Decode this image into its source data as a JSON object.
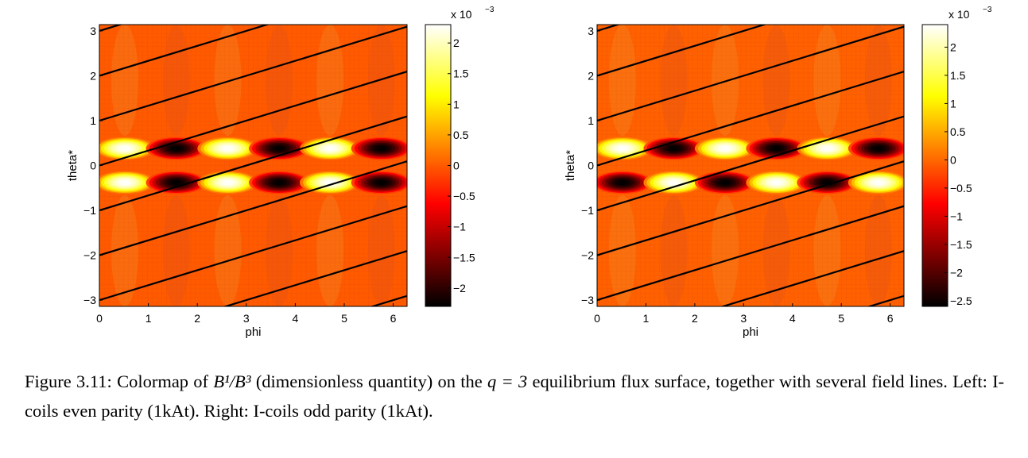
{
  "chart_data": [
    {
      "type": "heatmap",
      "title": "",
      "xlabel": "phi",
      "ylabel": "theta*",
      "xlim": [
        0,
        6.283
      ],
      "ylim": [
        -3.14,
        3.14
      ],
      "xticks": [
        "0",
        "1",
        "2",
        "3",
        "4",
        "5",
        "6"
      ],
      "yticks": [
        "3",
        "2",
        "1",
        "0",
        "−1",
        "−2",
        "−3"
      ],
      "colormap": "hot",
      "clim": [
        -0.0023,
        0.0023
      ],
      "colorbar": {
        "exponent_label": "x 10",
        "exponent": "−3",
        "ticks": [
          "2",
          "1.5",
          "1",
          "0.5",
          "0",
          "−0.5",
          "−1",
          "−1.5",
          "−2"
        ],
        "tick_values": [
          2,
          1.5,
          1,
          0.5,
          0,
          -0.5,
          -1,
          -1.5,
          -2
        ],
        "range": [
          -2.3,
          2.3
        ]
      },
      "parity": "even",
      "pattern": {
        "phi_centers": [
          0.52,
          1.57,
          2.62,
          3.67,
          4.71,
          5.76
        ],
        "upper_band_theta": 0.38,
        "lower_band_theta": -0.38,
        "upper_band_signs": [
          1,
          -1,
          1,
          -1,
          1,
          -1
        ],
        "lower_band_signs": [
          1,
          -1,
          1,
          -1,
          1,
          -1
        ]
      },
      "field_lines": {
        "slope": 0.3333,
        "theta_intercepts_at_phi0": [
          3.0,
          2.0,
          1.0,
          0.0,
          -1.0,
          -2.0,
          -3.0,
          -4.0,
          -5.0
        ]
      }
    },
    {
      "type": "heatmap",
      "title": "",
      "xlabel": "phi",
      "ylabel": "theta*",
      "xlim": [
        0,
        6.283
      ],
      "ylim": [
        -3.14,
        3.14
      ],
      "xticks": [
        "0",
        "1",
        "2",
        "3",
        "4",
        "5",
        "6"
      ],
      "yticks": [
        "3",
        "2",
        "1",
        "0",
        "−1",
        "−2",
        "−3"
      ],
      "colormap": "hot",
      "clim": [
        -0.0025,
        0.0024
      ],
      "colorbar": {
        "exponent_label": "x 10",
        "exponent": "−3",
        "ticks": [
          "2",
          "1.5",
          "1",
          "0.5",
          "0",
          "−0.5",
          "−1",
          "−1.5",
          "−2",
          "−2.5"
        ],
        "tick_values": [
          2,
          1.5,
          1,
          0.5,
          0,
          -0.5,
          -1,
          -1.5,
          -2,
          -2.5
        ],
        "range": [
          -2.6,
          2.4
        ]
      },
      "parity": "odd",
      "pattern": {
        "phi_centers": [
          0.52,
          1.57,
          2.62,
          3.67,
          4.71,
          5.76
        ],
        "upper_band_theta": 0.38,
        "lower_band_theta": -0.38,
        "upper_band_signs": [
          1,
          -1,
          1,
          -1,
          1,
          -1
        ],
        "lower_band_signs": [
          -1,
          1,
          -1,
          1,
          -1,
          1
        ]
      },
      "field_lines": {
        "slope": 0.3333,
        "theta_intercepts_at_phi0": [
          3.0,
          2.0,
          1.0,
          0.0,
          -1.0,
          -2.0,
          -3.0,
          -4.0,
          -5.0
        ]
      }
    }
  ],
  "caption": {
    "label": "Figure 3.11:",
    "text_before_math": "Colormap of",
    "math_quantity": "B¹/B³",
    "text_mid": "(dimensionless quantity) on the",
    "math_q": "q = 3",
    "text_after": "equilibrium flux surface, together with several field lines. Left: I-coils even parity (1kAt). Right: I-coils odd parity (1kAt)."
  }
}
